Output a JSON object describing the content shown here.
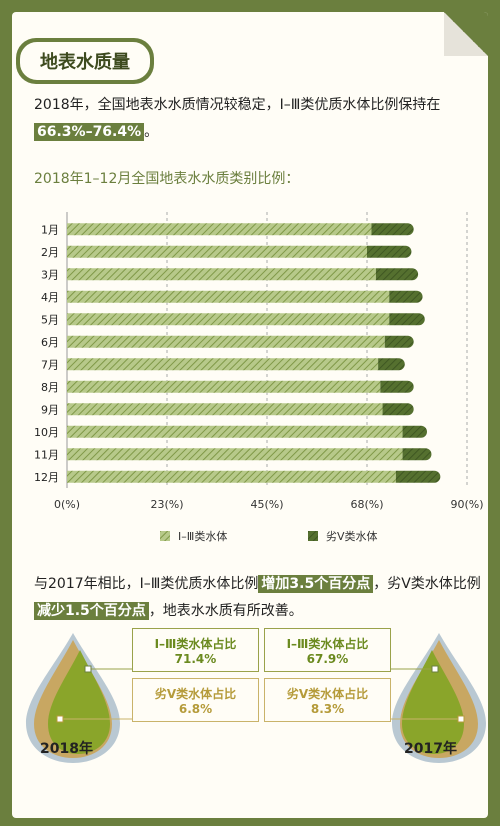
{
  "section_title": "地表水质量",
  "intro": {
    "text": "2018年，全国地表水水质情况较稳定，Ⅰ–Ⅲ类优质水体比例保持在",
    "highlight": "66.3%–76.4%",
    "end": "。"
  },
  "chart_subtitle": "2018年1–12月全国地表水水质类别比例：",
  "colors": {
    "good": "#8fa65a",
    "bad": "#4e6a2a",
    "accent": "#6b7f3e"
  },
  "chart_data": {
    "type": "bar",
    "orientation": "horizontal",
    "stacked": true,
    "categories": [
      "1月",
      "2月",
      "3月",
      "4月",
      "5月",
      "6月",
      "7月",
      "8月",
      "9月",
      "10月",
      "11月",
      "12月"
    ],
    "series": [
      {
        "name": "Ⅰ–Ⅲ类水体",
        "values": [
          68.5,
          67.5,
          69.5,
          72.5,
          72.5,
          71.5,
          70.0,
          70.5,
          71.0,
          75.5,
          75.5,
          74.0
        ]
      },
      {
        "name": "劣V类水体",
        "values": [
          9.5,
          10.0,
          9.5,
          7.5,
          8.0,
          6.5,
          6.0,
          7.5,
          7.0,
          5.5,
          6.5,
          10.0
        ]
      }
    ],
    "xticks": [
      "0(%)",
      "23(%)",
      "45(%)",
      "68(%)",
      "90(%)"
    ],
    "xtick_values": [
      0,
      22.5,
      45,
      67.5,
      90
    ],
    "xlim": [
      0,
      90
    ],
    "grid": true,
    "legend_position": "bottom"
  },
  "compare": {
    "t1": "与2017年相比，Ⅰ–Ⅲ类优质水体比例",
    "h1": "增加3.5个百分点",
    "t2": "，劣V类水体比例",
    "h2": "减少1.5个百分点",
    "t3": "，地表水水质有所改善。"
  },
  "drops": [
    {
      "year": "2018年",
      "good_label": "Ⅰ–Ⅲ类水体占比",
      "good_value": "71.4%",
      "bad_label": "劣V类水体占比",
      "bad_value": "6.8%"
    },
    {
      "year": "2017年",
      "good_label": "Ⅰ–Ⅲ类水体占比",
      "good_value": "67.9%",
      "bad_label": "劣V类水体占比",
      "bad_value": "8.3%"
    }
  ]
}
